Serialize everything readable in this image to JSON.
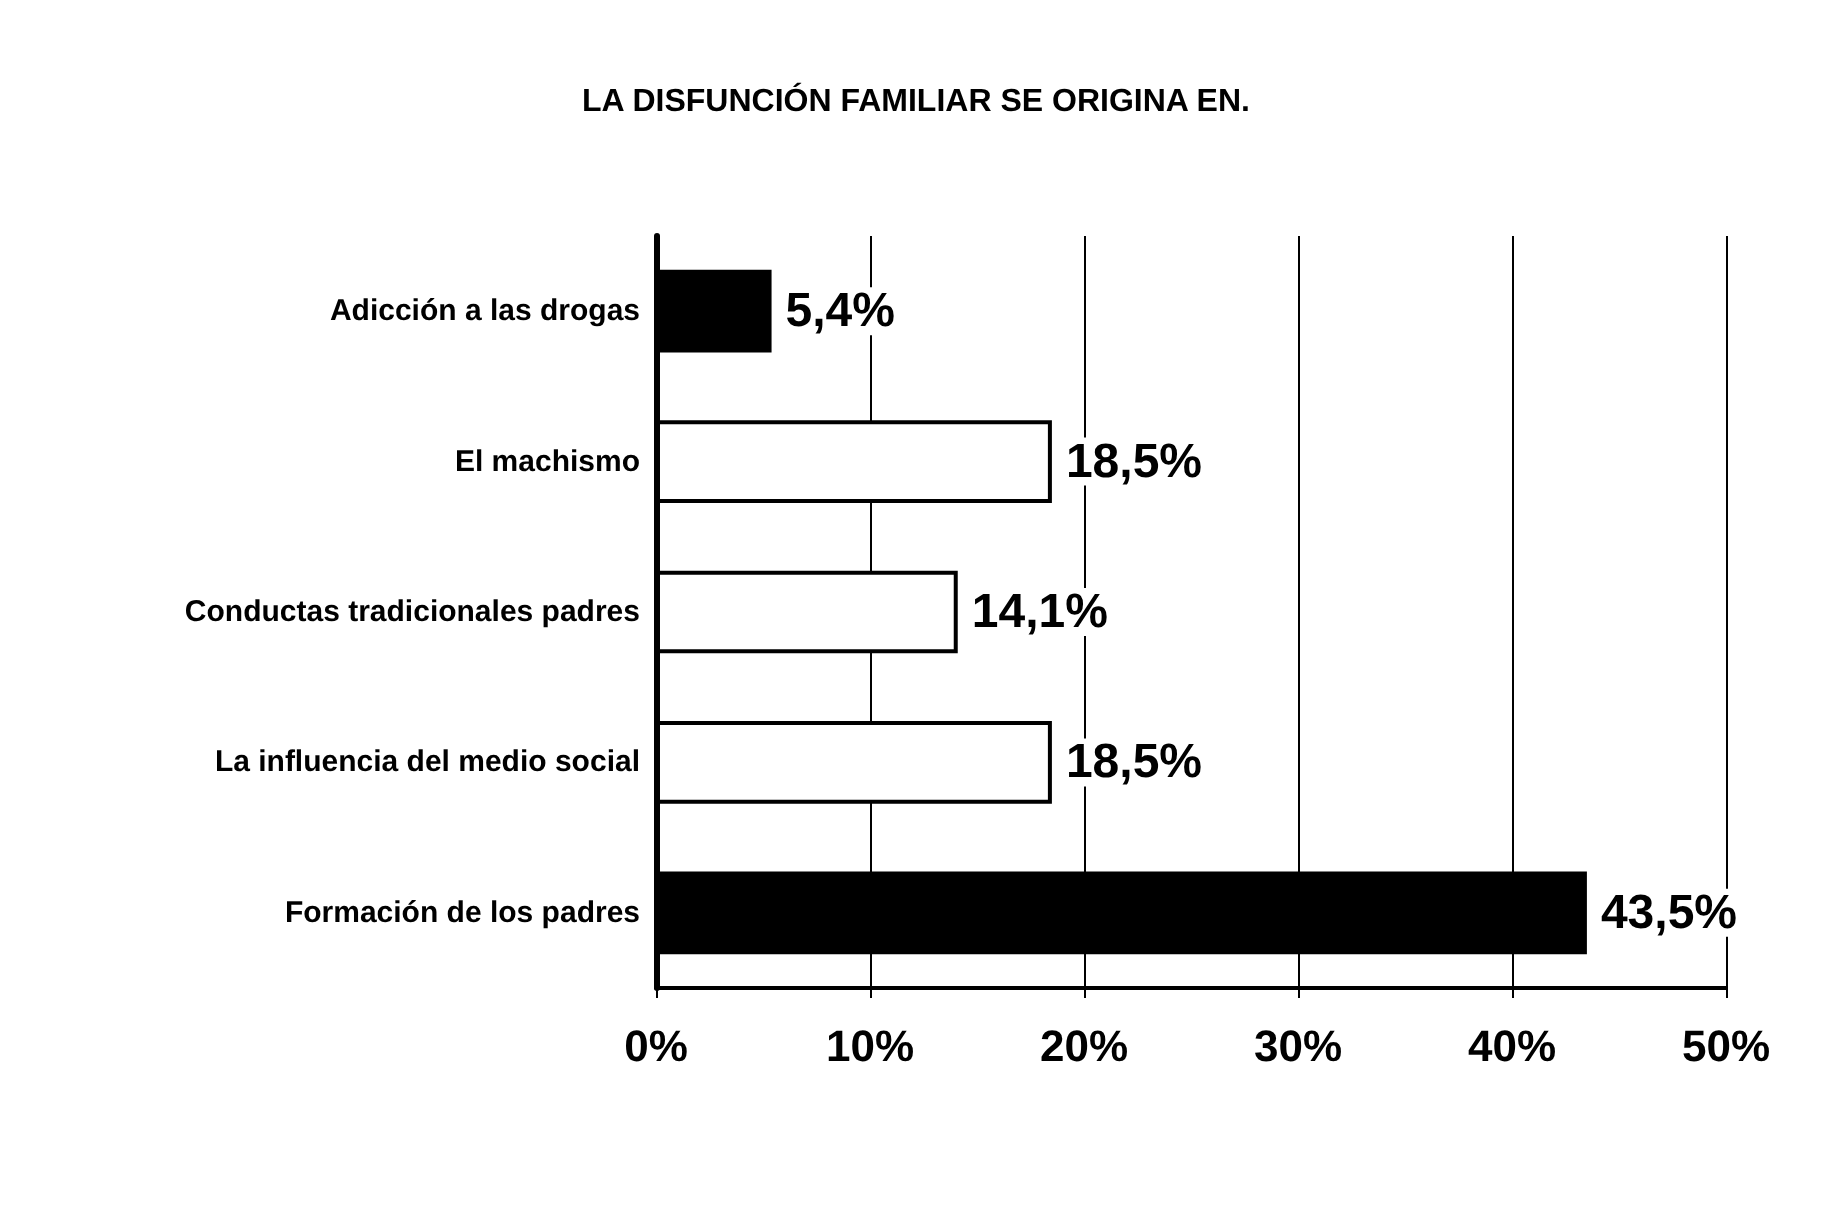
{
  "chart_data": {
    "type": "bar",
    "orientation": "horizontal",
    "title": "LA DISFUNCIÓN FAMILIAR SE ORIGINA EN.",
    "categories": [
      "Adicción a las drogas",
      "El machismo",
      "Conductas tradicionales padres",
      "La influencia del medio social",
      "Formación de los padres"
    ],
    "values": [
      5.4,
      18.5,
      14.1,
      18.5,
      43.5
    ],
    "colors": [
      "#000000",
      "#ffffff",
      "#ffffff",
      "#ffffff",
      "#000000"
    ],
    "value_labels": [
      "5,4%",
      "18,5%",
      "14,1%",
      "18,5%",
      "43,5%"
    ],
    "xlim": [
      0,
      50
    ],
    "xticks": [
      {
        "value": 0,
        "label": "0%"
      },
      {
        "value": 10,
        "label": "10%"
      },
      {
        "value": 20,
        "label": "20%"
      },
      {
        "value": 30,
        "label": "30%"
      },
      {
        "value": 40,
        "label": "40%"
      },
      {
        "value": 50,
        "label": "50%"
      }
    ],
    "grid": "x"
  }
}
